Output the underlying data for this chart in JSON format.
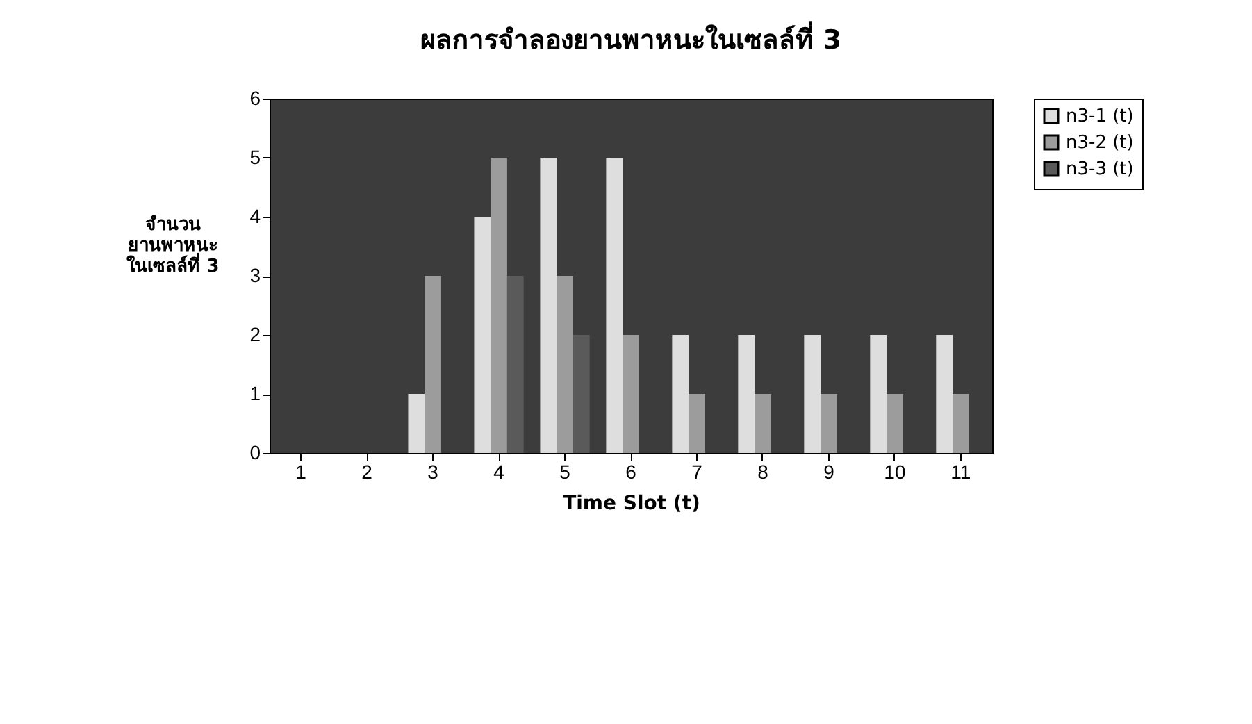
{
  "chart_data": {
    "type": "bar",
    "title": "ผลการจำลองยานพาหนะในเซลล์ที่ 3",
    "xlabel": "Time Slot (t)",
    "ylabel": "จำนวนยานพาหนะในเซลล์ที่ 3",
    "categories": [
      "1",
      "2",
      "3",
      "4",
      "5",
      "6",
      "7",
      "8",
      "9",
      "10",
      "11"
    ],
    "series": [
      {
        "name": "n3-1 (t)",
        "color": "#dedede",
        "values": [
          0,
          0,
          1,
          4,
          5,
          5,
          2,
          2,
          2,
          2,
          2
        ]
      },
      {
        "name": "n3-2 (t)",
        "color": "#9c9c9c",
        "values": [
          0,
          0,
          3,
          5,
          3,
          2,
          1,
          1,
          1,
          1,
          1
        ]
      },
      {
        "name": "n3-3 (t)",
        "color": "#5a5a5a",
        "values": [
          0,
          0,
          0,
          3,
          2,
          0,
          0,
          0,
          0,
          0,
          0
        ]
      }
    ],
    "ylim": [
      0,
      6
    ],
    "yticks": [
      0,
      1,
      2,
      3,
      4,
      5,
      6
    ],
    "grid": false,
    "legend": "right"
  }
}
